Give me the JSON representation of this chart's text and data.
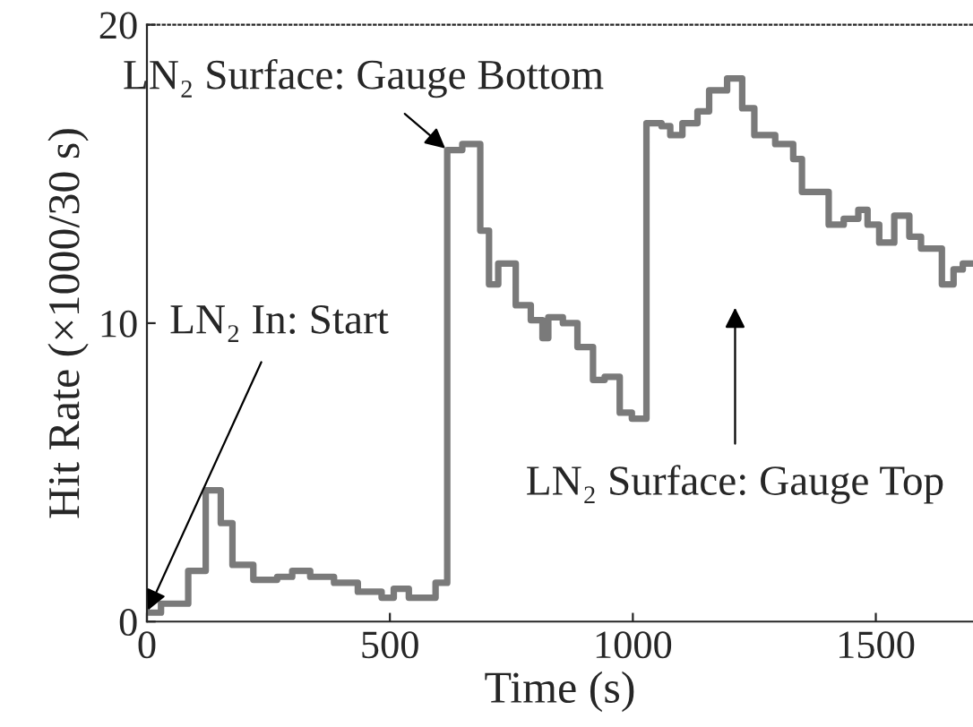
{
  "chart_data": {
    "type": "step",
    "xlabel": "Time (s)",
    "ylabel": "Hit Rate (×1000/30 s)",
    "xlim": [
      0,
      1700
    ],
    "ylim": [
      0,
      20
    ],
    "xticks": [
      0,
      500,
      1000,
      1500
    ],
    "yticks": [
      0,
      10,
      20
    ],
    "grid": false,
    "legend": false,
    "series": [
      {
        "color": "#7a7a7a",
        "x": [
          0,
          29,
          85,
          121,
          152,
          176,
          219,
          268,
          299,
          336,
          385,
          434,
          483,
          508,
          539,
          594,
          618,
          649,
          686,
          704,
          723,
          759,
          790,
          814,
          826,
          856,
          886,
          918,
          942,
          973,
          998,
          1028,
          1059,
          1077,
          1102,
          1133,
          1157,
          1194,
          1225,
          1250,
          1293,
          1330,
          1348,
          1403,
          1434,
          1464,
          1483,
          1507,
          1538,
          1569,
          1593,
          1636,
          1660,
          1679,
          1700
        ],
        "values": [
          0.3,
          0.6,
          1.7,
          4.4,
          3.3,
          1.9,
          1.4,
          1.5,
          1.7,
          1.5,
          1.3,
          1.0,
          0.8,
          1.1,
          0.8,
          1.3,
          15.8,
          16.0,
          13.1,
          11.3,
          12.0,
          10.6,
          10.1,
          9.5,
          10.2,
          10.0,
          9.2,
          8.1,
          8.2,
          7.0,
          6.8,
          16.7,
          16.6,
          16.3,
          16.7,
          17.1,
          17.8,
          18.2,
          17.2,
          16.3,
          16.0,
          15.5,
          14.4,
          13.3,
          13.5,
          13.8,
          13.3,
          12.7,
          13.6,
          12.9,
          12.5,
          11.3,
          11.8,
          12.0,
          12.0
        ]
      }
    ],
    "annotations": [
      {
        "text": "LN₂ In: Start",
        "x": 0,
        "y": 0.3
      },
      {
        "text": "LN₂ Surface: Gauge Bottom",
        "x": 618,
        "y": 15.8
      },
      "LN₂ Surface: Gauge Top"
    ]
  }
}
